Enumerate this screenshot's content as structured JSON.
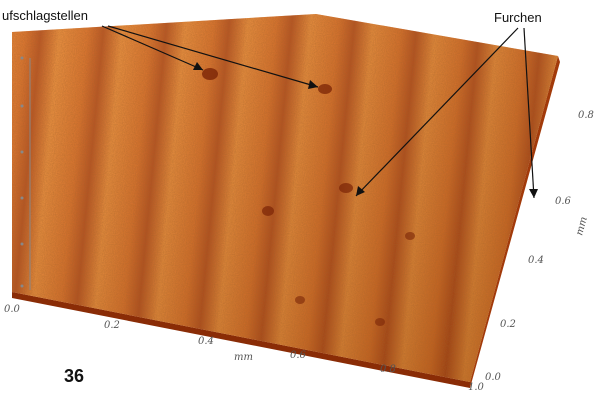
{
  "annotations": {
    "left_label": "ufschlagstellen",
    "right_label": "Furchen"
  },
  "x_axis": {
    "unit": "mm",
    "ticks": [
      "0.0",
      "0.2",
      "0.4",
      "0.6",
      "0.8",
      "1.0"
    ]
  },
  "y_axis": {
    "unit": "mm",
    "ticks": [
      "0.0",
      "0.2",
      "0.4",
      "0.6",
      "0.8"
    ]
  },
  "page_number": "36",
  "colors": {
    "surface_light": "#f0822a",
    "surface_dark": "#c44d10",
    "surface_deep": "#9a300a",
    "arrow": "#111111"
  }
}
